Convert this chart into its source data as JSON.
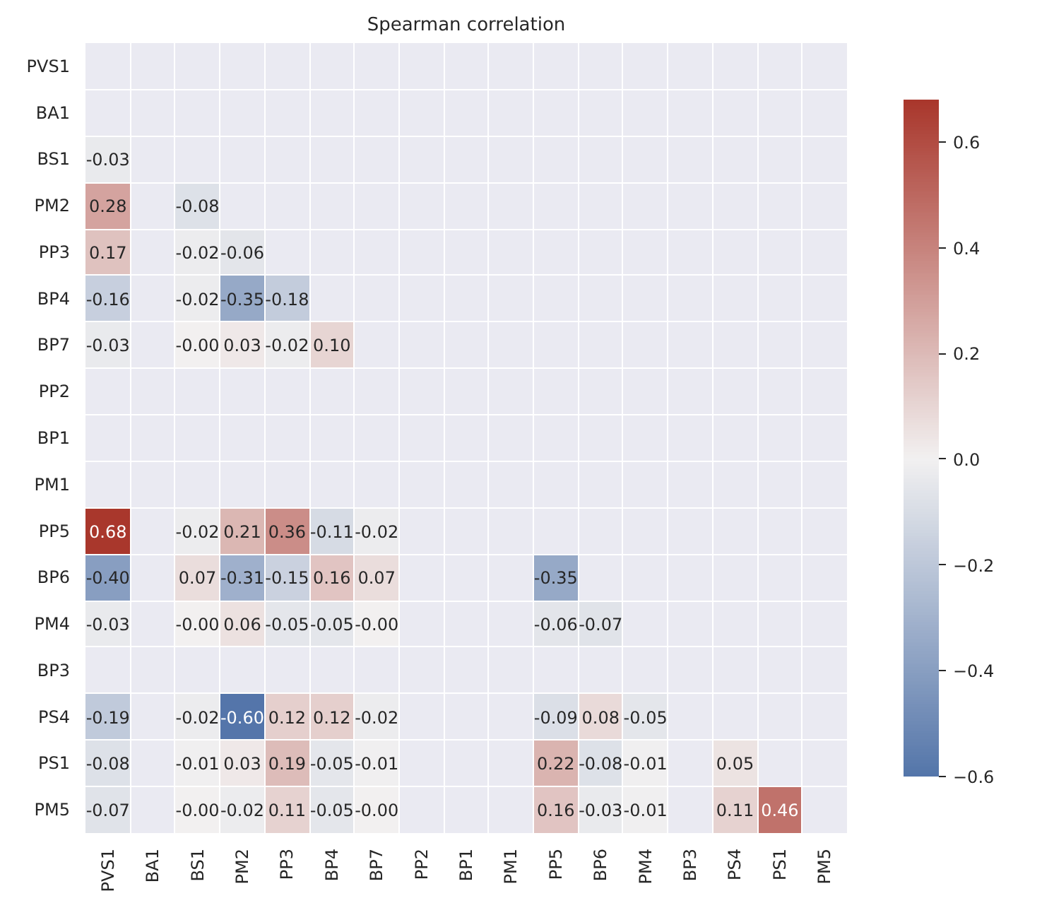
{
  "chart_data": {
    "type": "heatmap",
    "title": "Spearman correlation",
    "categories": [
      "PVS1",
      "BA1",
      "BS1",
      "PM2",
      "PP3",
      "BP4",
      "BP7",
      "PP2",
      "BP1",
      "PM1",
      "PP5",
      "BP6",
      "PM4",
      "BP3",
      "PS4",
      "PS1",
      "PM5"
    ],
    "y_categories": [
      "PVS1",
      "BA1",
      "BS1",
      "PM2",
      "PP3",
      "BP4",
      "BP7",
      "PP2",
      "BP1",
      "PM1",
      "PP5",
      "BP6",
      "PM4",
      "BP3",
      "PS4",
      "PS1",
      "PM5"
    ],
    "cells": [
      [
        null,
        null,
        null,
        null,
        null,
        null,
        null,
        null,
        null,
        null,
        null,
        null,
        null,
        null,
        null,
        null,
        null
      ],
      [
        null,
        null,
        null,
        null,
        null,
        null,
        null,
        null,
        null,
        null,
        null,
        null,
        null,
        null,
        null,
        null,
        null
      ],
      [
        -0.03,
        null,
        null,
        null,
        null,
        null,
        null,
        null,
        null,
        null,
        null,
        null,
        null,
        null,
        null,
        null,
        null
      ],
      [
        0.28,
        null,
        -0.08,
        null,
        null,
        null,
        null,
        null,
        null,
        null,
        null,
        null,
        null,
        null,
        null,
        null,
        null
      ],
      [
        0.17,
        null,
        -0.02,
        -0.06,
        null,
        null,
        null,
        null,
        null,
        null,
        null,
        null,
        null,
        null,
        null,
        null,
        null
      ],
      [
        -0.16,
        null,
        -0.02,
        -0.35,
        -0.18,
        null,
        null,
        null,
        null,
        null,
        null,
        null,
        null,
        null,
        null,
        null,
        null
      ],
      [
        -0.03,
        null,
        -0.0,
        0.03,
        -0.02,
        0.1,
        null,
        null,
        null,
        null,
        null,
        null,
        null,
        null,
        null,
        null,
        null
      ],
      [
        null,
        null,
        null,
        null,
        null,
        null,
        null,
        null,
        null,
        null,
        null,
        null,
        null,
        null,
        null,
        null,
        null
      ],
      [
        null,
        null,
        null,
        null,
        null,
        null,
        null,
        null,
        null,
        null,
        null,
        null,
        null,
        null,
        null,
        null,
        null
      ],
      [
        null,
        null,
        null,
        null,
        null,
        null,
        null,
        null,
        null,
        null,
        null,
        null,
        null,
        null,
        null,
        null,
        null
      ],
      [
        0.68,
        null,
        -0.02,
        0.21,
        0.36,
        -0.11,
        -0.02,
        null,
        null,
        null,
        null,
        null,
        null,
        null,
        null,
        null,
        null
      ],
      [
        -0.4,
        null,
        0.07,
        -0.31,
        -0.15,
        0.16,
        0.07,
        null,
        null,
        null,
        -0.35,
        null,
        null,
        null,
        null,
        null,
        null
      ],
      [
        -0.03,
        null,
        -0.0,
        0.06,
        -0.05,
        -0.05,
        -0.0,
        null,
        null,
        null,
        -0.06,
        -0.07,
        null,
        null,
        null,
        null,
        null
      ],
      [
        null,
        null,
        null,
        null,
        null,
        null,
        null,
        null,
        null,
        null,
        null,
        null,
        null,
        null,
        null,
        null,
        null
      ],
      [
        -0.19,
        null,
        -0.02,
        -0.6,
        0.12,
        0.12,
        -0.02,
        null,
        null,
        null,
        -0.09,
        0.08,
        -0.05,
        null,
        null,
        null,
        null
      ],
      [
        -0.08,
        null,
        -0.01,
        0.03,
        0.19,
        -0.05,
        -0.01,
        null,
        null,
        null,
        0.22,
        -0.08,
        -0.01,
        null,
        0.05,
        null,
        null
      ],
      [
        -0.07,
        null,
        -0.0,
        -0.02,
        0.11,
        -0.05,
        -0.0,
        null,
        null,
        null,
        0.16,
        -0.03,
        -0.01,
        null,
        0.11,
        0.46,
        null
      ]
    ],
    "cell_labels": [
      [
        null,
        null,
        null,
        null,
        null,
        null,
        null,
        null,
        null,
        null,
        null,
        null,
        null,
        null,
        null,
        null,
        null
      ],
      [
        null,
        null,
        null,
        null,
        null,
        null,
        null,
        null,
        null,
        null,
        null,
        null,
        null,
        null,
        null,
        null,
        null
      ],
      [
        "-0.03",
        null,
        null,
        null,
        null,
        null,
        null,
        null,
        null,
        null,
        null,
        null,
        null,
        null,
        null,
        null,
        null
      ],
      [
        "0.28",
        null,
        "-0.08",
        null,
        null,
        null,
        null,
        null,
        null,
        null,
        null,
        null,
        null,
        null,
        null,
        null,
        null
      ],
      [
        "0.17",
        null,
        "-0.02",
        "-0.06",
        null,
        null,
        null,
        null,
        null,
        null,
        null,
        null,
        null,
        null,
        null,
        null,
        null
      ],
      [
        "-0.16",
        null,
        "-0.02",
        "-0.35",
        "-0.18",
        null,
        null,
        null,
        null,
        null,
        null,
        null,
        null,
        null,
        null,
        null,
        null
      ],
      [
        "-0.03",
        null,
        "-0.00",
        "0.03",
        "-0.02",
        "0.10",
        null,
        null,
        null,
        null,
        null,
        null,
        null,
        null,
        null,
        null,
        null
      ],
      [
        null,
        null,
        null,
        null,
        null,
        null,
        null,
        null,
        null,
        null,
        null,
        null,
        null,
        null,
        null,
        null,
        null
      ],
      [
        null,
        null,
        null,
        null,
        null,
        null,
        null,
        null,
        null,
        null,
        null,
        null,
        null,
        null,
        null,
        null,
        null
      ],
      [
        null,
        null,
        null,
        null,
        null,
        null,
        null,
        null,
        null,
        null,
        null,
        null,
        null,
        null,
        null,
        null,
        null
      ],
      [
        "0.68",
        null,
        "-0.02",
        "0.21",
        "0.36",
        "-0.11",
        "-0.02",
        null,
        null,
        null,
        null,
        null,
        null,
        null,
        null,
        null,
        null
      ],
      [
        "-0.40",
        null,
        "0.07",
        "-0.31",
        "-0.15",
        "0.16",
        "0.07",
        null,
        null,
        null,
        "-0.35",
        null,
        null,
        null,
        null,
        null,
        null
      ],
      [
        "-0.03",
        null,
        "-0.00",
        "0.06",
        "-0.05",
        "-0.05",
        "-0.00",
        null,
        null,
        null,
        "-0.06",
        "-0.07",
        null,
        null,
        null,
        null,
        null
      ],
      [
        null,
        null,
        null,
        null,
        null,
        null,
        null,
        null,
        null,
        null,
        null,
        null,
        null,
        null,
        null,
        null,
        null
      ],
      [
        "-0.19",
        null,
        "-0.02",
        "-0.60",
        "0.12",
        "0.12",
        "-0.02",
        null,
        null,
        null,
        "-0.09",
        "0.08",
        "-0.05",
        null,
        null,
        null,
        null
      ],
      [
        "-0.08",
        null,
        "-0.01",
        "0.03",
        "0.19",
        "-0.05",
        "-0.01",
        null,
        null,
        null,
        "0.22",
        "-0.08",
        "-0.01",
        null,
        "0.05",
        null,
        null
      ],
      [
        "-0.07",
        null,
        "-0.00",
        "-0.02",
        "0.11",
        "-0.05",
        "-0.00",
        null,
        null,
        null,
        "0.16",
        "-0.03",
        "-0.01",
        null,
        "0.11",
        "0.46",
        null
      ]
    ],
    "colors": [
      "#3f65a0",
      "#f2f1f1",
      "#a9372c"
    ],
    "clim": [
      -0.6,
      0.68
    ],
    "cticks": [
      -0.6,
      -0.4,
      -0.2,
      {
        "value": 0,
        "label": "0.0"
      },
      0.2,
      0.4,
      0.6
    ],
    "grid": true
  }
}
